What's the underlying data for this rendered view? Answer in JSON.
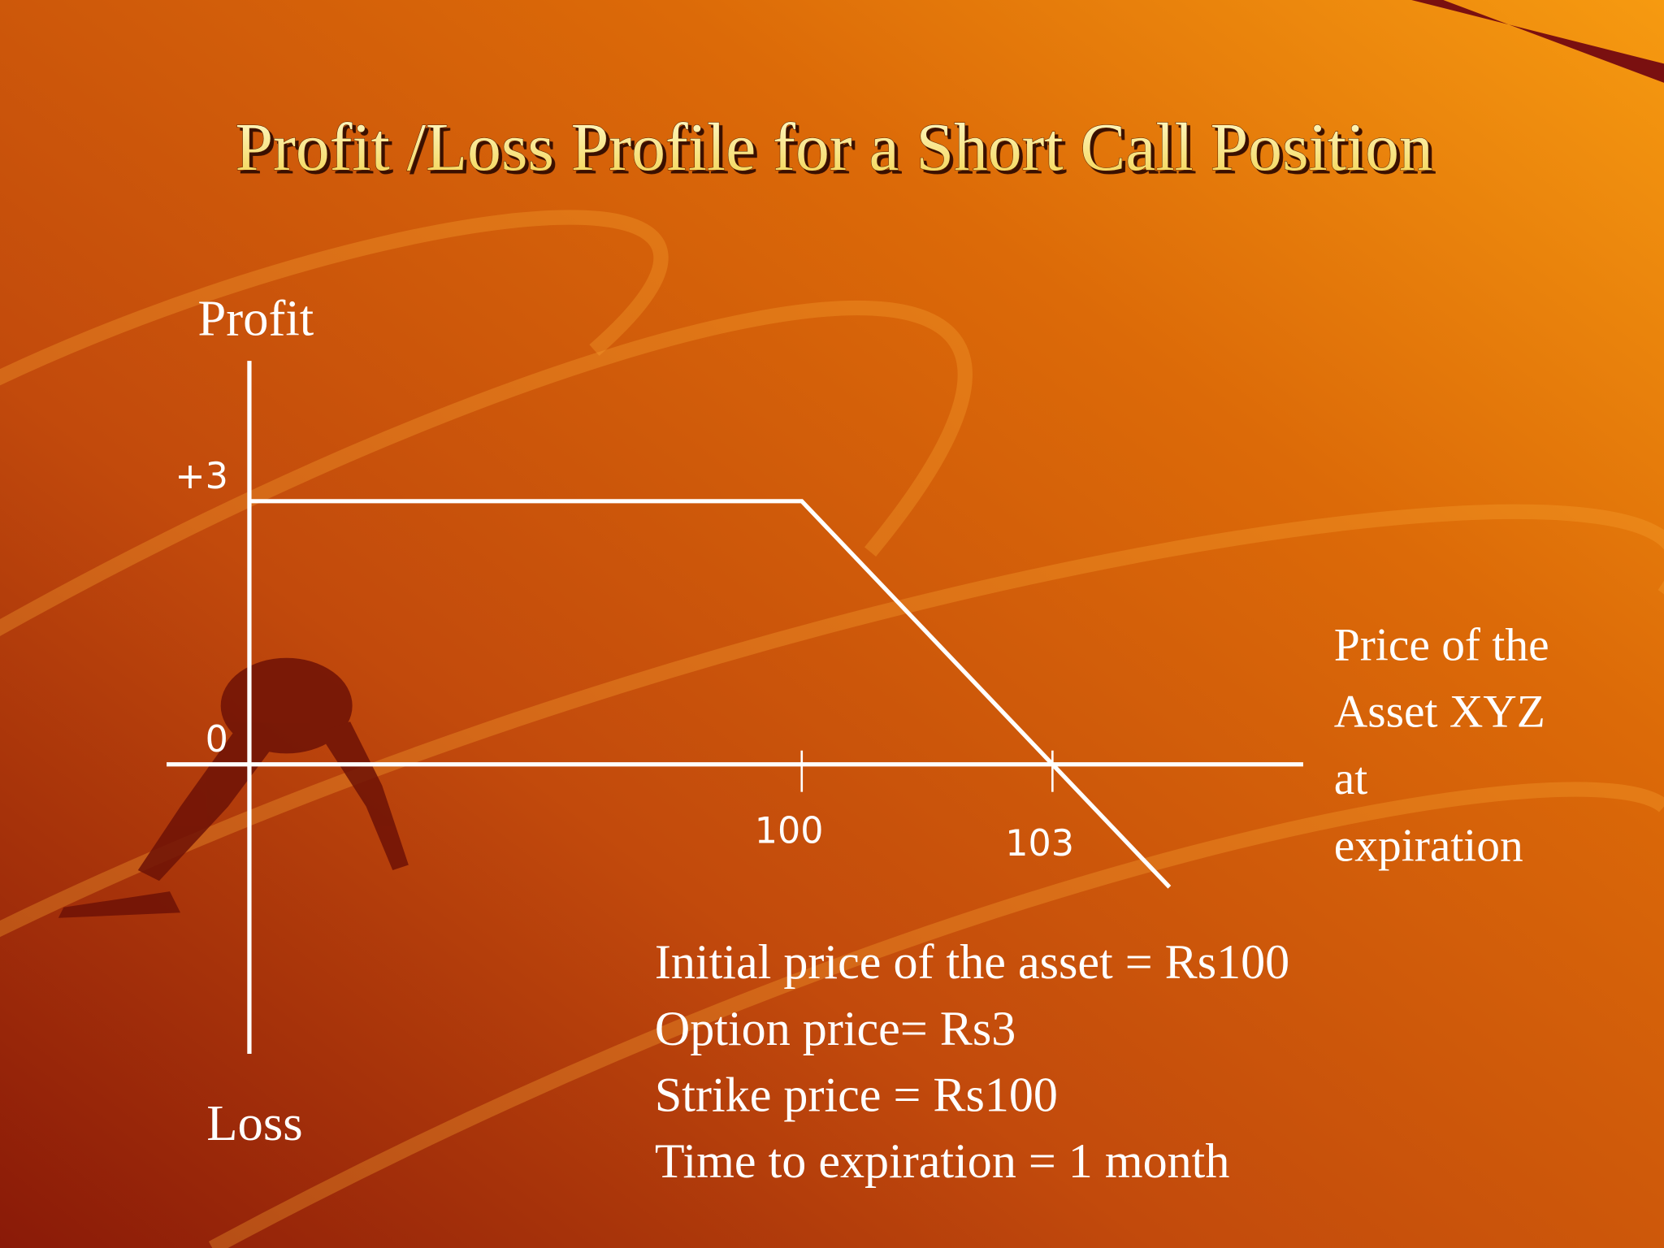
{
  "chart_data": {
    "type": "line",
    "title": "Profit /Loss Profile for a Short Call Position",
    "y_label_top": "Profit",
    "y_label_bottom": "Loss",
    "x_label": [
      "Price of the",
      "Asset XYZ",
      "at",
      "expiration"
    ],
    "x": [
      93.4,
      100,
      103,
      104.4
    ],
    "values": [
      3,
      3,
      0,
      -1.4
    ],
    "color": "#ffffff",
    "xlim": [
      92.4,
      106
    ],
    "ylim": [
      -3.3,
      4.6
    ],
    "xticks": [
      100,
      103
    ],
    "yticks": [
      {
        "value": 3,
        "label": "+3"
      },
      0
    ],
    "grid": false,
    "notes": [
      "Initial price of the asset = Rs100",
      "Option price= Rs3",
      "Strike price = Rs100",
      "Time to expiration = 1 month"
    ]
  }
}
